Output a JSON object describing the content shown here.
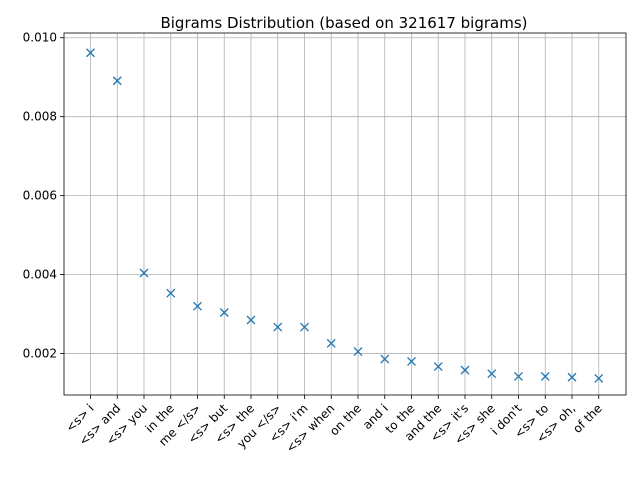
{
  "chart_data": {
    "type": "scatter",
    "title": "Bigrams Distribution (based on 321617 bigrams)",
    "xlabel": "",
    "ylabel": "",
    "marker": "x",
    "color": "#1f77b4",
    "grid": true,
    "ylim": [
      0.00095,
      0.01012
    ],
    "yticks": [
      0.002,
      0.004,
      0.006,
      0.008,
      0.01
    ],
    "ytick_labels": [
      "0.002",
      "0.004",
      "0.006",
      "0.008",
      "0.010"
    ],
    "categories": [
      "<s> i",
      "<s> and",
      "<s> you",
      "in the",
      "me </s>",
      "<s> but",
      "<s> the",
      "you </s>",
      "<s> i'm",
      "<s> when",
      "on the",
      "and i",
      "to the",
      "and the",
      "<s> it's",
      "<s> she",
      "i don't",
      "<s> to",
      "<s> oh,",
      "of the"
    ],
    "values": [
      0.00962,
      0.00891,
      0.00404,
      0.00353,
      0.0032,
      0.00304,
      0.00285,
      0.00267,
      0.00267,
      0.00226,
      0.00205,
      0.00186,
      0.0018,
      0.00167,
      0.00158,
      0.00149,
      0.00142,
      0.00142,
      0.0014,
      0.00137
    ]
  }
}
